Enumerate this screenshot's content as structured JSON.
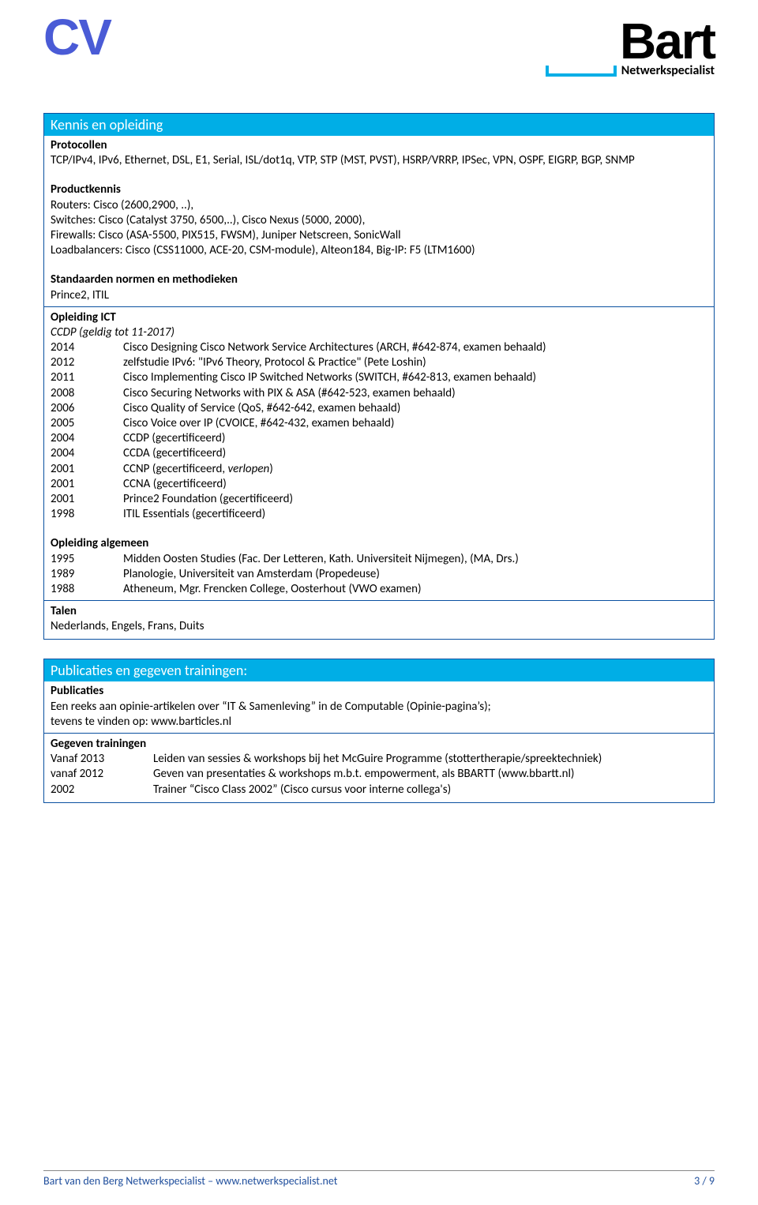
{
  "logo": {
    "cv": "CV",
    "name": "Bart",
    "subtitle": "Netwerkspecialist"
  },
  "section1": {
    "title": "Kennis en opleiding",
    "protocollen": {
      "heading": "Protocollen",
      "text": "TCP/IPv4, IPv6, Ethernet, DSL, E1, Serial, ISL/dot1q, VTP, STP (MST, PVST), HSRP/VRRP, IPSec, VPN, OSPF, EIGRP, BGP, SNMP"
    },
    "productkennis": {
      "heading": "Productkennis",
      "line1": "Routers: Cisco (2600,2900, ..),",
      "line2": "Switches: Cisco (Catalyst 3750, 6500,..), Cisco Nexus (5000, 2000),",
      "line3": "Firewalls: Cisco (ASA-5500, PIX515, FWSM), Juniper Netscreen, SonicWall",
      "line4": "Loadbalancers: Cisco  (CSS11000, ACE-20, CSM-module), Alteon184, Big-IP: F5 (LTM1600)"
    },
    "standaarden": {
      "heading": "Standaarden normen en methodieken",
      "text": "Prince2, ITIL"
    },
    "opleiding_ict": {
      "heading": "Opleiding ICT",
      "sub": "CCDP (geldig tot 11-2017)",
      "rows": [
        {
          "year": "2014",
          "text": "Cisco Designing Cisco Network Service Architectures (ARCH, #642-874, examen behaald)"
        },
        {
          "year": "2012",
          "text": "zelfstudie IPv6: \"IPv6 Theory, Protocol & Practice\" (Pete Loshin)"
        },
        {
          "year": "2011",
          "text": "Cisco Implementing Cisco IP Switched Networks (SWITCH, #642-813, examen behaald)"
        },
        {
          "year": "2008",
          "text": "Cisco Securing Networks with PIX & ASA (#642-523, examen behaald)"
        },
        {
          "year": "2006",
          "text": "Cisco Quality of Service (QoS, #642-642, examen behaald)"
        },
        {
          "year": "2005",
          "text": "Cisco Voice over IP (CVOICE, #642-432, examen behaald)"
        },
        {
          "year": "2004",
          "text": "CCDP (gecertificeerd)"
        },
        {
          "year": "2004",
          "text": "CCDA (gecertificeerd)"
        },
        {
          "year": "2001",
          "text_pre": "CCNP (gecertificeerd, ",
          "text_italic": "verlopen",
          "text_post": ")"
        },
        {
          "year": "2001",
          "text": "CCNA (gecertificeerd)"
        },
        {
          "year": "2001",
          "text": "Prince2 Foundation (gecertificeerd)"
        },
        {
          "year": "1998",
          "text": "ITIL Essentials (gecertificeerd)"
        }
      ]
    },
    "opleiding_algemeen": {
      "heading": "Opleiding algemeen",
      "rows": [
        {
          "year": "1995",
          "text": "Midden Oosten Studies (Fac. Der Letteren, Kath. Universiteit Nijmegen), (MA, Drs.)"
        },
        {
          "year": "1989",
          "text": "Planologie, Universiteit van Amsterdam (Propedeuse)"
        },
        {
          "year": "1988",
          "text": "Atheneum, Mgr. Frencken College, Oosterhout (VWO examen)"
        }
      ]
    },
    "talen": {
      "heading": "Talen",
      "text": "Nederlands, Engels, Frans, Duits"
    }
  },
  "section2": {
    "title": "Publicaties en gegeven trainingen:",
    "publicaties": {
      "heading": "Publicaties",
      "line1": "Een reeks aan opinie-artikelen over “IT & Samenleving” in de Computable (Opinie-pagina’s);",
      "line2": "tevens te vinden op: www.barticles.nl"
    },
    "trainingen": {
      "heading": "Gegeven trainingen",
      "rows": [
        {
          "year": "Vanaf 2013",
          "text": "Leiden van sessies & workshops bij het McGuire Programme (stottertherapie/spreektechniek)"
        },
        {
          "year": "vanaf 2012",
          "text": "Geven van presentaties & workshops m.b.t. empowerment, als BBARTT (www.bbartt.nl)"
        },
        {
          "year": "2002",
          "text": "Trainer “Cisco Class 2002” (Cisco cursus voor interne collega's)"
        }
      ]
    }
  },
  "footer": {
    "left": "Bart van den Berg Netwerkspecialist – www.netwerkspecialist.net",
    "right": "3 / 9"
  }
}
